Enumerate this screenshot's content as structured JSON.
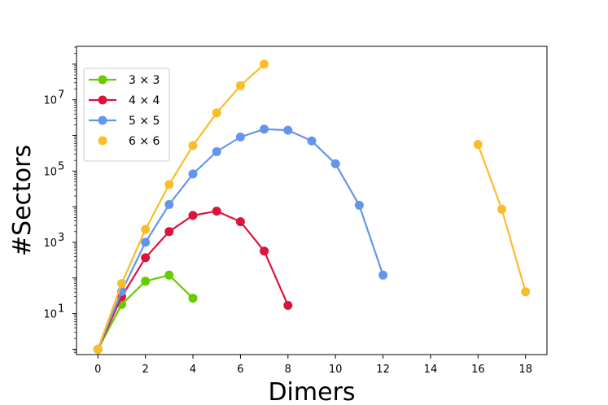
{
  "chart_data": {
    "type": "line",
    "xlabel": "Dimers",
    "ylabel": "#Sectors",
    "xlim": [
      -0.9,
      18.9
    ],
    "ylim_log10": [
      -0.15,
      8.5
    ],
    "y_scale": "log",
    "x_ticks": [
      0,
      2,
      4,
      6,
      8,
      10,
      12,
      14,
      16,
      18
    ],
    "y_ticks": [
      {
        "value": 10,
        "exp": "1"
      },
      {
        "value": 1000,
        "exp": "3"
      },
      {
        "value": 100000,
        "exp": "5"
      },
      {
        "value": 10000000,
        "exp": "7"
      }
    ],
    "grid": false,
    "legend_position": "top-left",
    "series": [
      {
        "name": "3 × 3",
        "color": "#66cc00",
        "x": [
          0,
          1,
          2,
          3,
          4
        ],
        "y": [
          1,
          18,
          81,
          120,
          27
        ],
        "segments": [
          [
            0,
            4
          ]
        ]
      },
      {
        "name": "4 × 4",
        "color": "#dc143c",
        "x": [
          0,
          1,
          2,
          3,
          4,
          5,
          6,
          7,
          8
        ],
        "y": [
          1,
          30,
          370,
          2000,
          5700,
          7500,
          3800,
          570,
          17
        ],
        "segments": [
          [
            0,
            8
          ]
        ]
      },
      {
        "name": "5 × 5",
        "color": "#6495ed",
        "x": [
          0,
          1,
          2,
          3,
          4,
          5,
          6,
          7,
          8,
          9,
          10,
          11,
          12
        ],
        "y": [
          1,
          42,
          1000,
          11500,
          83000,
          350000,
          900000,
          1500000,
          1400000,
          700000,
          160000,
          11000,
          120
        ],
        "segments": [
          [
            0,
            12
          ]
        ]
      },
      {
        "name": "6 × 6",
        "color": "#fbbc2a",
        "x": [
          0,
          1,
          2,
          3,
          4,
          5,
          6,
          7,
          16,
          17,
          18
        ],
        "y": [
          1,
          70,
          2300,
          42000,
          520000,
          4300000,
          25000000,
          100000000,
          560000,
          8500,
          41
        ],
        "segments": [
          [
            0,
            7
          ],
          [
            8,
            10
          ]
        ]
      }
    ]
  }
}
